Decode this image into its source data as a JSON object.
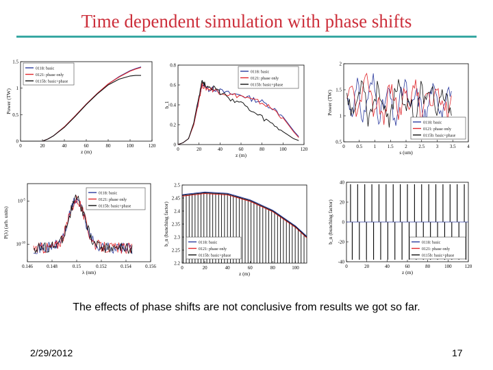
{
  "slide": {
    "title": "Time dependent simulation with phase shifts",
    "caption": "The effects of phase shifts are not conclusive from results we got so far.",
    "date": "2/29/2012",
    "page_number": "17"
  },
  "colors": {
    "title": "#cc2e3a",
    "rule": "#38a8a2",
    "series_basic": "#2b3a9e",
    "series_phase_only": "#e0262b",
    "series_basic_phase": "#111111"
  },
  "chart_data": [
    {
      "type": "line",
      "title": "",
      "xlabel": "z (m)",
      "ylabel": "Power (TW)",
      "xlim": [
        0,
        120
      ],
      "ylim": [
        0,
        1.5
      ],
      "xticks": [
        0,
        20,
        40,
        60,
        80,
        100,
        120
      ],
      "yticks": [
        0,
        0.5,
        1,
        1.5
      ],
      "xtick_labels": [
        "0",
        "20",
        "40",
        "60",
        "80",
        "100",
        "120"
      ],
      "ytick_labels": [
        "0",
        "0.5",
        "1",
        "1.5"
      ],
      "legend": [
        "0118: basic",
        "0121: phase only",
        "0115b: basic+phase"
      ],
      "legend_position": "top-left",
      "x": [
        0,
        20,
        25,
        30,
        40,
        50,
        60,
        70,
        80,
        90,
        100,
        105,
        110
      ],
      "series": [
        {
          "name": "0118: basic",
          "values": [
            0,
            0,
            0.04,
            0.1,
            0.27,
            0.48,
            0.7,
            0.9,
            1.08,
            1.22,
            1.33,
            1.37,
            1.4
          ]
        },
        {
          "name": "0121: phase only",
          "values": [
            0,
            0,
            0.04,
            0.1,
            0.27,
            0.48,
            0.7,
            0.9,
            1.08,
            1.21,
            1.32,
            1.36,
            1.39
          ]
        },
        {
          "name": "0115b: basic+phase",
          "values": [
            0,
            0,
            0.04,
            0.1,
            0.26,
            0.47,
            0.69,
            0.89,
            1.06,
            1.17,
            1.23,
            1.24,
            1.24
          ]
        }
      ]
    },
    {
      "type": "line",
      "title": "",
      "xlabel": "z (m)",
      "ylabel": "b_1",
      "xlim": [
        0,
        120
      ],
      "ylim": [
        0,
        0.8
      ],
      "xticks": [
        0,
        20,
        40,
        60,
        80,
        100,
        120
      ],
      "yticks": [
        0,
        0.2,
        0.4,
        0.6,
        0.8
      ],
      "xtick_labels": [
        "0",
        "20",
        "40",
        "60",
        "80",
        "100",
        "120"
      ],
      "ytick_labels": [
        "0",
        "0.2",
        "0.4",
        "0.6",
        "0.8"
      ],
      "legend": [
        "0118: basic",
        "0121: phase only",
        "0115b: basic+phase"
      ],
      "legend_position": "top-right",
      "x": [
        0,
        5,
        10,
        15,
        20,
        23,
        26,
        30,
        35,
        40,
        50,
        60,
        70,
        80,
        90,
        100,
        110,
        115
      ],
      "series": [
        {
          "name": "0118: basic",
          "values": [
            0,
            0.02,
            0.06,
            0.2,
            0.45,
            0.62,
            0.58,
            0.55,
            0.56,
            0.54,
            0.51,
            0.5,
            0.46,
            0.43,
            0.37,
            0.28,
            0.14,
            0.08
          ]
        },
        {
          "name": "0121: phase only",
          "values": [
            0,
            0.02,
            0.06,
            0.2,
            0.46,
            0.6,
            0.57,
            0.56,
            0.55,
            0.53,
            0.5,
            0.49,
            0.45,
            0.42,
            0.36,
            0.27,
            0.13,
            0.07
          ]
        },
        {
          "name": "0115b: basic+phase",
          "values": [
            0,
            0.02,
            0.06,
            0.22,
            0.5,
            0.64,
            0.6,
            0.58,
            0.57,
            0.52,
            0.46,
            0.42,
            0.33,
            0.27,
            0.2,
            0.13,
            0.06,
            0.04
          ]
        }
      ]
    },
    {
      "type": "line",
      "title": "",
      "xlabel": "s (um)",
      "ylabel": "Power (TW)",
      "xlim": [
        0,
        4
      ],
      "ylim": [
        0.5,
        2
      ],
      "xticks": [
        0,
        0.5,
        1,
        1.5,
        2,
        2.5,
        3,
        3.5,
        4
      ],
      "yticks": [
        0.5,
        1,
        1.5,
        2
      ],
      "xtick_labels": [
        "0",
        "0.5",
        "1",
        "1.5",
        "2",
        "2.5",
        "3",
        "3.5",
        "4"
      ],
      "ytick_labels": [
        "0.5",
        "1",
        "1.5",
        "2"
      ],
      "legend": [
        "0118: basic",
        "0121: phase only",
        "0115b: basic+phase"
      ],
      "legend_position": "bottom-right",
      "series": [
        {
          "name": "0118: basic",
          "values": [
            1.35,
            1.1,
            1.6,
            0.9,
            1.4,
            1.7,
            1.0,
            1.2,
            1.5,
            0.8,
            1.3,
            1.65,
            1.05,
            1.45,
            1.2,
            0.95,
            1.55,
            1.3,
            1.1,
            1.6,
            1.25
          ]
        },
        {
          "name": "0121: phase only",
          "values": [
            1.2,
            1.55,
            1.0,
            1.45,
            1.75,
            1.1,
            1.3,
            0.85,
            1.6,
            1.35,
            1.0,
            1.5,
            1.2,
            1.7,
            0.9,
            1.4,
            1.15,
            1.6,
            1.3,
            1.05,
            1.5
          ]
        },
        {
          "name": "0115b: basic+phase",
          "values": [
            1.5,
            1.0,
            1.3,
            1.8,
            0.95,
            1.25,
            1.6,
            1.1,
            0.8,
            1.45,
            1.7,
            1.05,
            1.35,
            0.9,
            1.55,
            1.2,
            1.65,
            0.95,
            1.4,
            1.25,
            1.1
          ]
        }
      ]
    },
    {
      "type": "line",
      "title": "",
      "xlabel": "λ (nm)",
      "ylabel": "P(λ) (arb. units)",
      "xlim": [
        0.146,
        0.156
      ],
      "yscale": "log",
      "xticks": [
        0.146,
        0.148,
        0.15,
        0.152,
        0.154,
        0.156
      ],
      "yticks": [
        1e-05,
        1e-10
      ],
      "xtick_labels": [
        "0.146",
        "0.148",
        "0.15",
        "0.152",
        "0.154",
        "0.156"
      ],
      "ytick_labels": [
        "10^-5",
        "10^-10"
      ],
      "legend": [
        "0118: basic",
        "0121: phase only",
        "0115b: basic+phase"
      ],
      "legend_position": "top-right",
      "peak_x": 0.15
    },
    {
      "type": "bar",
      "title": "",
      "xlabel": "z (m)",
      "ylabel": "b_n (bunching factor)",
      "xlim": [
        0,
        110
      ],
      "ylim": [
        2.2,
        2.5
      ],
      "xticks": [
        0,
        20,
        40,
        60,
        80,
        100
      ],
      "yticks": [
        2.2,
        2.25,
        2.3,
        2.35,
        2.4,
        2.45,
        2.5
      ],
      "xtick_labels": [
        "0",
        "20",
        "40",
        "60",
        "80",
        "100"
      ],
      "ytick_labels": [
        "2.2",
        "2.25",
        "2.3",
        "2.35",
        "2.4",
        "2.45",
        "2.5"
      ],
      "legend": [
        "0118: basic",
        "0121: phase only",
        "0115b: basic+phase"
      ],
      "legend_position": "bottom-left",
      "curve_x": [
        0,
        20,
        40,
        60,
        80,
        100,
        110
      ],
      "curve_values": [
        2.46,
        2.47,
        2.465,
        2.44,
        2.4,
        2.34,
        2.3
      ]
    },
    {
      "type": "bar",
      "title": "",
      "xlabel": "z (m)",
      "ylabel": "b_n (bunching factor)",
      "xlim": [
        0,
        120
      ],
      "ylim": [
        -40,
        40
      ],
      "xticks": [
        0,
        20,
        40,
        60,
        80,
        100,
        120
      ],
      "yticks": [
        -40,
        -20,
        0,
        20,
        40
      ],
      "xtick_labels": [
        "0",
        "20",
        "40",
        "60",
        "80",
        "100",
        "120"
      ],
      "ytick_labels": [
        "-40",
        "-20",
        "0",
        "20",
        "40"
      ],
      "legend": [
        "0118: basic",
        "0121: phase only",
        "0115b: basic+phase"
      ],
      "legend_position": "bottom-right",
      "bar_positions": [
        4,
        11,
        18,
        25,
        32,
        39,
        46,
        53,
        60,
        67,
        74,
        81,
        88,
        95,
        102,
        109,
        116
      ],
      "upper_value": 38,
      "lower_value": -38
    }
  ]
}
